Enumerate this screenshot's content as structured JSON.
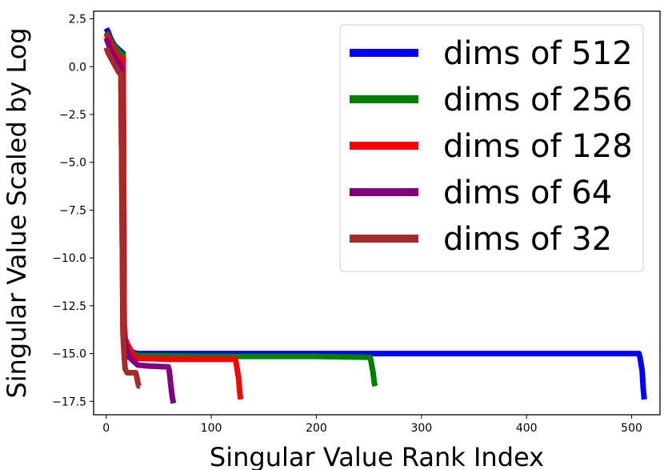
{
  "chart_data": {
    "type": "line",
    "title": "",
    "xlabel": "Singular Value Rank Index",
    "ylabel": "Singular Value Scaled by Log",
    "xlim": [
      -12,
      527
    ],
    "ylim": [
      -18.2,
      2.9
    ],
    "xticks": [
      0,
      100,
      200,
      300,
      400,
      500
    ],
    "yticks": [
      2.5,
      0.0,
      -2.5,
      -5.0,
      -7.5,
      -10.0,
      -12.5,
      -15.0,
      -17.5
    ],
    "ytick_labels": [
      "2.5",
      "0.0",
      "−2.5",
      "−5.0",
      "−7.5",
      "−10.0",
      "−12.5",
      "−15.0",
      "−17.5"
    ],
    "grid": false,
    "legend_position": "top-right",
    "series": [
      {
        "name": "dims of 512",
        "color": "#0000ff",
        "x": [
          0,
          2,
          4,
          6,
          8,
          10,
          12,
          14,
          16,
          16.5,
          17,
          18,
          20,
          22,
          26,
          30,
          100,
          200,
          300,
          400,
          507,
          508,
          510,
          511,
          512
        ],
        "y": [
          2.0,
          1.8,
          1.5,
          1.3,
          1.1,
          1.0,
          0.9,
          0.8,
          0.7,
          -5.0,
          -13.5,
          -14.3,
          -14.6,
          -14.8,
          -14.95,
          -15.0,
          -15.0,
          -15.0,
          -15.0,
          -15.0,
          -15.0,
          -15.2,
          -15.9,
          -16.8,
          -17.4
        ]
      },
      {
        "name": "dims of 256",
        "color": "#008000",
        "x": [
          0,
          2,
          4,
          6,
          8,
          10,
          12,
          14,
          16,
          16.5,
          17,
          18,
          20,
          22,
          26,
          30,
          100,
          200,
          251,
          252,
          254,
          255,
          256
        ],
        "y": [
          1.8,
          1.6,
          1.4,
          1.2,
          1.0,
          0.9,
          0.8,
          0.7,
          0.6,
          -5.0,
          -13.5,
          -14.3,
          -14.6,
          -14.8,
          -15.0,
          -15.1,
          -15.15,
          -15.15,
          -15.2,
          -15.4,
          -16.0,
          -16.5,
          -16.7
        ]
      },
      {
        "name": "dims of 128",
        "color": "#ff0000",
        "x": [
          0,
          2,
          4,
          6,
          8,
          10,
          12,
          14,
          16,
          16.5,
          17,
          18,
          20,
          22,
          24,
          26,
          30,
          60,
          100,
          123,
          124,
          126,
          127,
          128
        ],
        "y": [
          1.7,
          1.5,
          1.2,
          1.0,
          0.8,
          0.6,
          0.5,
          0.4,
          0.4,
          -5.0,
          -13.5,
          -14.2,
          -14.5,
          -14.7,
          -14.9,
          -15.1,
          -15.25,
          -15.3,
          -15.3,
          -15.3,
          -15.6,
          -16.3,
          -17.0,
          -17.4
        ]
      },
      {
        "name": "dims of 64",
        "color": "#800080",
        "x": [
          0,
          2,
          4,
          6,
          8,
          10,
          12,
          14,
          15,
          16,
          18,
          20,
          22,
          26,
          30,
          40,
          59,
          60,
          61,
          62,
          63,
          64
        ],
        "y": [
          1.5,
          1.2,
          0.9,
          0.7,
          0.5,
          0.3,
          0.2,
          0.0,
          -7.0,
          -13.8,
          -14.5,
          -14.9,
          -15.2,
          -15.4,
          -15.6,
          -15.65,
          -15.7,
          -15.9,
          -16.4,
          -16.9,
          -17.3,
          -17.6
        ]
      },
      {
        "name": "dims of 32",
        "color": "#a52a2a",
        "x": [
          0,
          2,
          4,
          6,
          8,
          10,
          12,
          14,
          15,
          16,
          17,
          18,
          20,
          25,
          28,
          29,
          30,
          31,
          32
        ],
        "y": [
          1.0,
          0.7,
          0.5,
          0.3,
          0.1,
          -0.1,
          -0.3,
          -0.4,
          -7.0,
          -14.0,
          -15.0,
          -15.8,
          -16.0,
          -16.0,
          -16.0,
          -16.2,
          -16.5,
          -16.7,
          -16.7
        ]
      }
    ]
  }
}
